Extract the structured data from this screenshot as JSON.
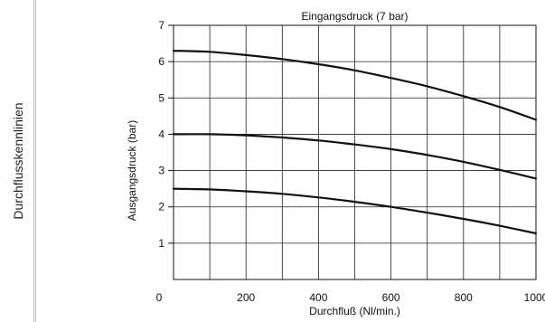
{
  "side_title": "Durchflusskennlinien",
  "chart_data": {
    "type": "line",
    "title": "Eingangsdruck (7 bar)",
    "xlabel": "Durchfluß (Nl/min.)",
    "ylabel": "Ausgangsdruck (bar)",
    "xlim": [
      0,
      1000
    ],
    "ylim": [
      0,
      7
    ],
    "x_ticks": [
      0,
      200,
      400,
      600,
      800,
      1000
    ],
    "y_ticks": [
      1,
      2,
      3,
      4,
      5,
      6,
      7
    ],
    "grid": true,
    "series": [
      {
        "x": [
          0,
          100,
          200,
          300,
          400,
          500,
          600,
          700,
          800,
          900,
          1000
        ],
        "values": [
          6.3,
          6.27,
          6.18,
          6.07,
          5.93,
          5.76,
          5.55,
          5.32,
          5.05,
          4.75,
          4.4
        ]
      },
      {
        "x": [
          0,
          100,
          200,
          300,
          400,
          500,
          600,
          700,
          800,
          900,
          1000
        ],
        "values": [
          4.0,
          4.0,
          3.97,
          3.91,
          3.83,
          3.72,
          3.59,
          3.43,
          3.24,
          3.02,
          2.78
        ]
      },
      {
        "x": [
          0,
          100,
          200,
          300,
          400,
          500,
          600,
          700,
          800,
          900,
          1000
        ],
        "values": [
          2.5,
          2.48,
          2.43,
          2.36,
          2.26,
          2.14,
          2.0,
          1.84,
          1.67,
          1.48,
          1.27
        ]
      }
    ]
  }
}
